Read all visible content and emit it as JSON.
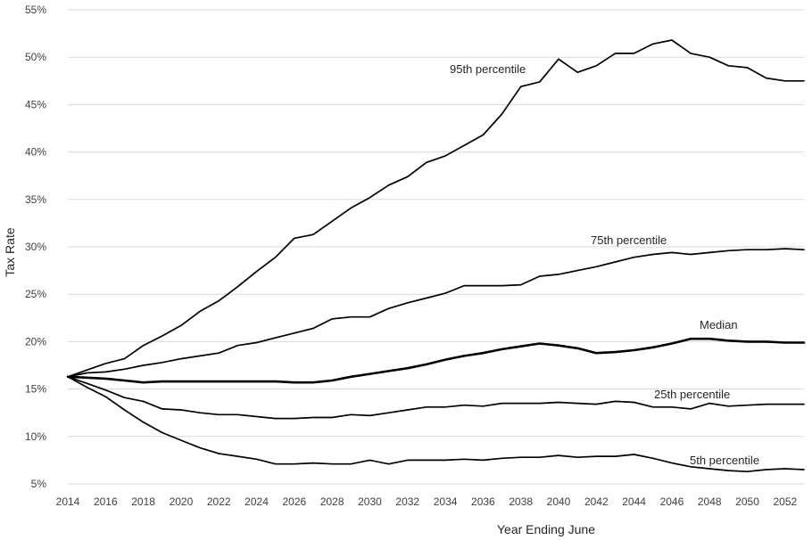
{
  "chart_data": {
    "type": "line",
    "title": "",
    "xlabel": "Year Ending June",
    "ylabel": "Tax Rate",
    "xlim": [
      2014,
      2053
    ],
    "ylim": [
      5,
      55
    ],
    "x_ticks": [
      "2014",
      "2016",
      "2018",
      "2020",
      "2022",
      "2024",
      "2026",
      "2028",
      "2030",
      "2032",
      "2034",
      "2036",
      "2038",
      "2040",
      "2042",
      "2044",
      "2046",
      "2048",
      "2050",
      "2052"
    ],
    "y_ticks": [
      "5%",
      "10%",
      "15%",
      "20%",
      "25%",
      "30%",
      "35%",
      "40%",
      "45%",
      "50%",
      "55%"
    ],
    "grid": "horizontal",
    "legend": "none",
    "line_color": "#000000",
    "x": [
      2014,
      2015,
      2016,
      2017,
      2018,
      2019,
      2020,
      2021,
      2022,
      2023,
      2024,
      2025,
      2026,
      2027,
      2028,
      2029,
      2030,
      2031,
      2032,
      2033,
      2034,
      2035,
      2036,
      2037,
      2038,
      2039,
      2040,
      2041,
      2042,
      2043,
      2044,
      2045,
      2046,
      2047,
      2048,
      2049,
      2050,
      2051,
      2052,
      2053
    ],
    "series": [
      {
        "name": "95th percentile",
        "values": [
          16.3,
          17.0,
          17.7,
          18.2,
          19.6,
          20.6,
          21.7,
          23.2,
          24.3,
          25.8,
          27.4,
          28.9,
          30.9,
          31.3,
          32.7,
          34.1,
          35.2,
          36.5,
          37.4,
          38.9,
          39.6,
          40.7,
          41.8,
          44.0,
          46.9,
          47.4,
          49.8,
          48.4,
          49.1,
          50.4,
          50.4,
          51.4,
          51.8,
          50.4,
          50.0,
          49.1,
          48.9,
          47.8,
          47.5,
          47.5
        ]
      },
      {
        "name": "75th percentile",
        "values": [
          16.3,
          16.7,
          16.8,
          17.1,
          17.5,
          17.8,
          18.2,
          18.5,
          18.8,
          19.6,
          19.9,
          20.4,
          20.9,
          21.4,
          22.4,
          22.6,
          22.6,
          23.5,
          24.1,
          24.6,
          25.1,
          25.9,
          25.9,
          25.9,
          26.0,
          26.9,
          27.1,
          27.5,
          27.9,
          28.4,
          28.9,
          29.2,
          29.4,
          29.2,
          29.4,
          29.6,
          29.7,
          29.7,
          29.8,
          29.7
        ]
      },
      {
        "name": "Median",
        "values": [
          16.3,
          16.2,
          16.1,
          15.9,
          15.7,
          15.8,
          15.8,
          15.8,
          15.8,
          15.8,
          15.8,
          15.8,
          15.7,
          15.7,
          15.9,
          16.3,
          16.6,
          16.9,
          17.2,
          17.6,
          18.1,
          18.5,
          18.8,
          19.2,
          19.5,
          19.8,
          19.6,
          19.3,
          18.8,
          18.9,
          19.1,
          19.4,
          19.8,
          20.3,
          20.3,
          20.1,
          20.0,
          20.0,
          19.9,
          19.9
        ]
      },
      {
        "name": "25th percentile",
        "values": [
          16.3,
          15.6,
          14.9,
          14.1,
          13.7,
          12.9,
          12.8,
          12.5,
          12.3,
          12.3,
          12.1,
          11.9,
          11.9,
          12.0,
          12.0,
          12.3,
          12.2,
          12.5,
          12.8,
          13.1,
          13.1,
          13.3,
          13.2,
          13.5,
          13.5,
          13.5,
          13.6,
          13.5,
          13.4,
          13.7,
          13.6,
          13.1,
          13.1,
          12.9,
          13.5,
          13.2,
          13.3,
          13.4,
          13.4,
          13.4
        ]
      },
      {
        "name": "5th percentile",
        "values": [
          16.3,
          15.2,
          14.2,
          12.8,
          11.5,
          10.4,
          9.6,
          8.8,
          8.2,
          7.9,
          7.6,
          7.1,
          7.1,
          7.2,
          7.1,
          7.1,
          7.5,
          7.1,
          7.5,
          7.5,
          7.5,
          7.6,
          7.5,
          7.7,
          7.8,
          7.8,
          8.0,
          7.8,
          7.9,
          7.9,
          8.1,
          7.7,
          7.2,
          6.8,
          6.6,
          6.4,
          6.3,
          6.5,
          6.6,
          6.5
        ]
      }
    ],
    "annotations": [
      "95th percentile",
      "75th percentile",
      "Median",
      "25th percentile",
      "5th percentile"
    ]
  }
}
